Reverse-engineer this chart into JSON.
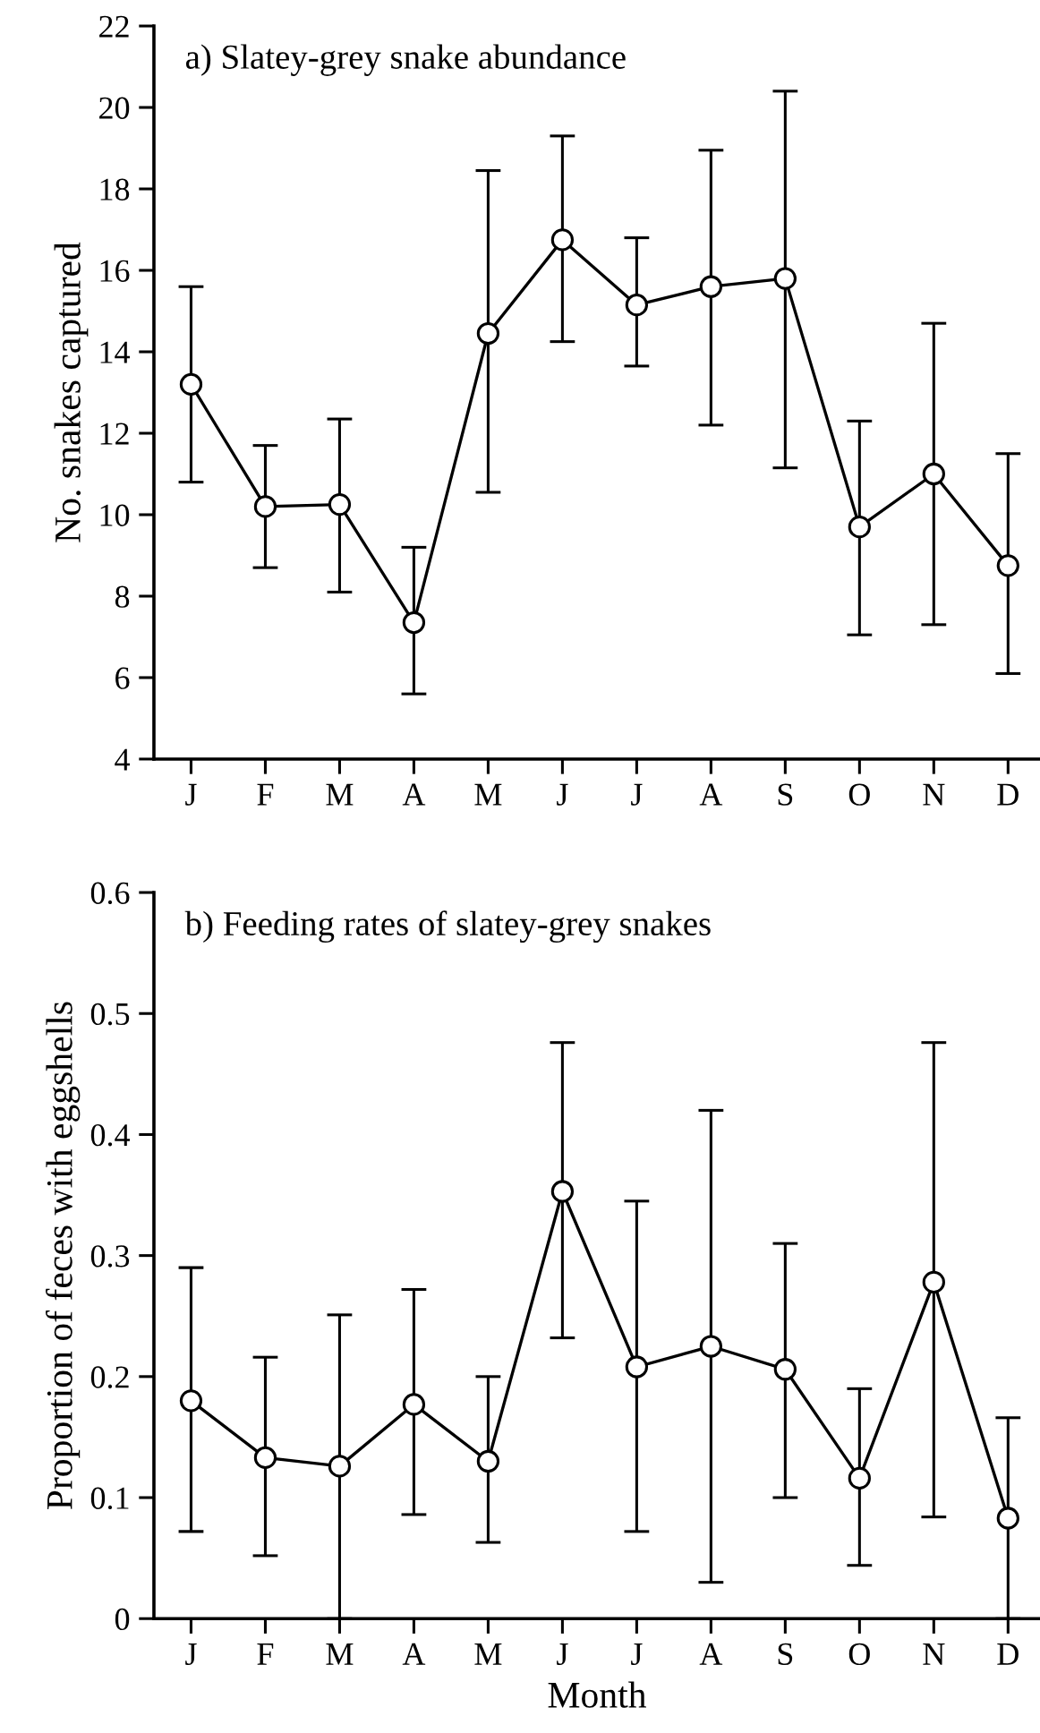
{
  "chart_data": [
    {
      "type": "line",
      "title": "a) Slatey-grey snake abundance",
      "ylabel": "No. snakes captured",
      "categories": [
        "J",
        "F",
        "M",
        "A",
        "M",
        "J",
        "J",
        "A",
        "S",
        "O",
        "N",
        "D"
      ],
      "series": [
        {
          "color": "#000000",
          "values": [
            13.2,
            10.2,
            10.25,
            7.35,
            14.45,
            16.75,
            15.15,
            15.6,
            15.8,
            9.7,
            11.0,
            8.75
          ],
          "errors": [
            [
              10.8,
              15.6
            ],
            [
              8.7,
              11.7
            ],
            [
              8.1,
              12.35
            ],
            [
              5.6,
              9.2
            ],
            [
              10.55,
              18.45
            ],
            [
              14.25,
              19.3
            ],
            [
              13.65,
              16.8
            ],
            [
              12.2,
              18.95
            ],
            [
              11.15,
              20.4
            ],
            [
              7.05,
              12.3
            ],
            [
              7.3,
              14.7
            ],
            [
              6.1,
              11.5
            ]
          ]
        }
      ],
      "ylim": [
        4,
        22
      ],
      "yticks": [
        4,
        6,
        8,
        10,
        12,
        14,
        16,
        18,
        20,
        22
      ],
      "grid": false,
      "marker": "circle",
      "line_style": "solid"
    },
    {
      "type": "line",
      "title": "b) Feeding rates of slatey-grey snakes",
      "ylabel": "Proportion of feces with eggshells",
      "xlabel": "Month",
      "categories": [
        "J",
        "F",
        "M",
        "A",
        "M",
        "J",
        "J",
        "A",
        "S",
        "O",
        "N",
        "D"
      ],
      "series": [
        {
          "color": "#000000",
          "values": [
            0.18,
            0.133,
            0.126,
            0.177,
            0.13,
            0.353,
            0.208,
            0.225,
            0.206,
            0.116,
            0.278,
            0.083
          ],
          "errors": [
            [
              0.072,
              0.29
            ],
            [
              0.052,
              0.216
            ],
            [
              0,
              0.251
            ],
            [
              0.086,
              0.272
            ],
            [
              0.063,
              0.2
            ],
            [
              0.232,
              0.476
            ],
            [
              0.072,
              0.345
            ],
            [
              0.03,
              0.42
            ],
            [
              0.1,
              0.31
            ],
            [
              0.044,
              0.19
            ],
            [
              0.084,
              0.476
            ],
            [
              0,
              0.166
            ]
          ]
        }
      ],
      "ylim": [
        0,
        0.6
      ],
      "yticks": [
        0,
        0.1,
        0.2,
        0.3,
        0.4,
        0.5,
        0.6
      ],
      "grid": false,
      "marker": "circle",
      "line_style": "solid"
    }
  ]
}
